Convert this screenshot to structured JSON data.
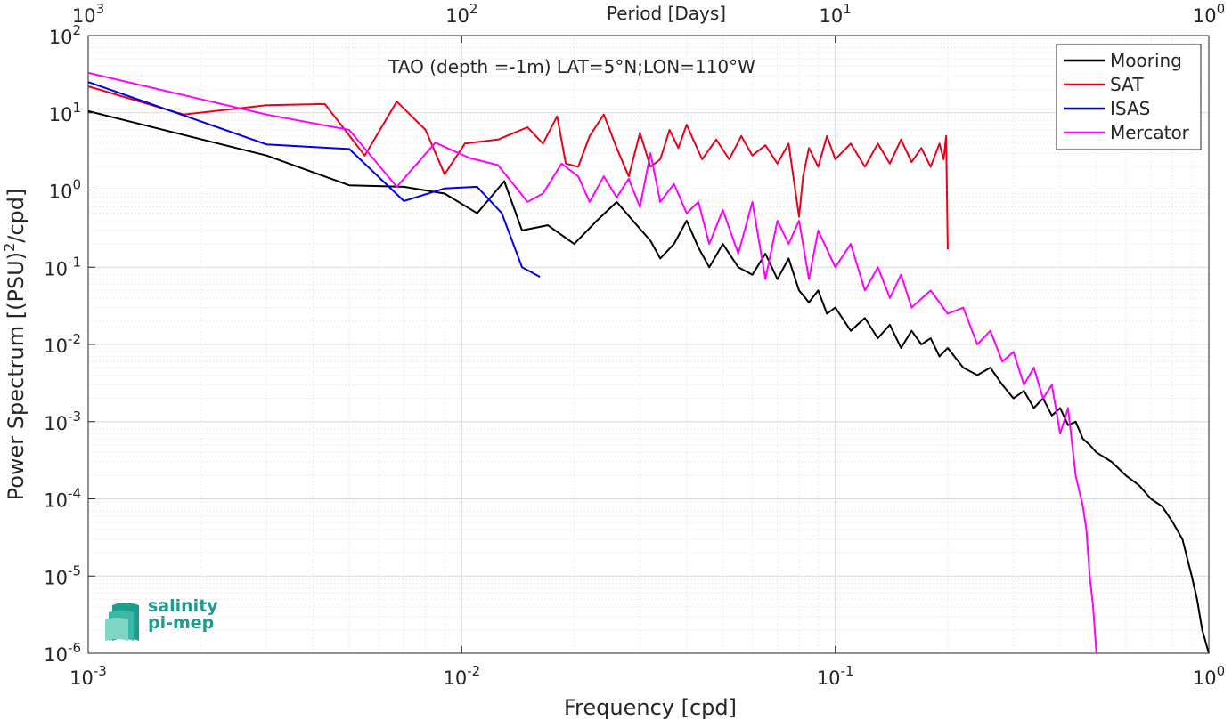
{
  "chart_data": {
    "type": "line",
    "title": "TAO (depth =-1m) LAT=5°N;LON=110°W",
    "xlabel": "Frequency [cpd]",
    "ylabel_main": "Power Spectrum [(PSU)",
    "ylabel_sup": "2",
    "ylabel_tail": "/cpd]",
    "top_xlabel": "Period [Days]",
    "xscale": "log",
    "yscale": "log",
    "xlim": [
      0.001,
      1
    ],
    "ylim": [
      1e-06,
      100
    ],
    "grid": true,
    "legend_position": "top-right",
    "x_ticks": [
      {
        "value": 0.001,
        "base": "10",
        "exp": "-3"
      },
      {
        "value": 0.01,
        "base": "10",
        "exp": "-2"
      },
      {
        "value": 0.1,
        "base": "10",
        "exp": "-1"
      },
      {
        "value": 1,
        "base": "10",
        "exp": "0"
      }
    ],
    "top_ticks": [
      {
        "value": 0.001,
        "base": "10",
        "exp": "3"
      },
      {
        "value": 0.01,
        "base": "10",
        "exp": "2"
      },
      {
        "value": 0.1,
        "base": "10",
        "exp": "1"
      },
      {
        "value": 1,
        "base": "10",
        "exp": "0"
      }
    ],
    "y_ticks": [
      {
        "value": 1e-06,
        "base": "10",
        "exp": "-6"
      },
      {
        "value": 1e-05,
        "base": "10",
        "exp": "-5"
      },
      {
        "value": 0.0001,
        "base": "10",
        "exp": "-4"
      },
      {
        "value": 0.001,
        "base": "10",
        "exp": "-3"
      },
      {
        "value": 0.01,
        "base": "10",
        "exp": "-2"
      },
      {
        "value": 0.1,
        "base": "10",
        "exp": "-1"
      },
      {
        "value": 1,
        "base": "10",
        "exp": "0"
      },
      {
        "value": 10,
        "base": "10",
        "exp": "1"
      },
      {
        "value": 100,
        "base": "10",
        "exp": "2"
      }
    ],
    "series": [
      {
        "name": "Mooring",
        "color": "#000000",
        "x": [
          0.001,
          0.003,
          0.005,
          0.007,
          0.009,
          0.011,
          0.013,
          0.0145,
          0.017,
          0.02,
          0.023,
          0.026,
          0.029,
          0.032,
          0.034,
          0.037,
          0.04,
          0.043,
          0.046,
          0.05,
          0.055,
          0.06,
          0.065,
          0.07,
          0.075,
          0.08,
          0.085,
          0.09,
          0.095,
          0.1,
          0.11,
          0.12,
          0.13,
          0.14,
          0.15,
          0.16,
          0.17,
          0.18,
          0.19,
          0.2,
          0.22,
          0.24,
          0.26,
          0.28,
          0.3,
          0.32,
          0.34,
          0.36,
          0.38,
          0.4,
          0.42,
          0.44,
          0.46,
          0.48,
          0.5,
          0.55,
          0.6,
          0.65,
          0.7,
          0.75,
          0.8,
          0.85,
          0.9,
          0.93,
          0.96,
          1.0
        ],
        "y": [
          10.5,
          2.8,
          1.15,
          1.1,
          0.9,
          0.5,
          1.3,
          0.3,
          0.35,
          0.2,
          0.4,
          0.7,
          0.38,
          0.22,
          0.13,
          0.2,
          0.4,
          0.18,
          0.1,
          0.2,
          0.1,
          0.08,
          0.15,
          0.07,
          0.13,
          0.05,
          0.035,
          0.05,
          0.025,
          0.03,
          0.015,
          0.022,
          0.012,
          0.018,
          0.009,
          0.015,
          0.01,
          0.012,
          0.007,
          0.009,
          0.005,
          0.004,
          0.005,
          0.003,
          0.002,
          0.0025,
          0.0015,
          0.002,
          0.0012,
          0.0015,
          0.0009,
          0.001,
          0.0006,
          0.0005,
          0.0004,
          0.0003,
          0.0002,
          0.00015,
          0.0001,
          8e-05,
          5e-05,
          3e-05,
          1e-05,
          5e-06,
          2e-06,
          1e-06
        ]
      },
      {
        "name": "SAT",
        "color": "#e8001c",
        "x": [
          0.001,
          0.0018,
          0.003,
          0.0043,
          0.0055,
          0.0067,
          0.008,
          0.009,
          0.0102,
          0.0125,
          0.015,
          0.0165,
          0.018,
          0.019,
          0.0205,
          0.022,
          0.024,
          0.026,
          0.028,
          0.03,
          0.032,
          0.034,
          0.036,
          0.038,
          0.04,
          0.044,
          0.048,
          0.052,
          0.056,
          0.06,
          0.065,
          0.07,
          0.075,
          0.08,
          0.082,
          0.085,
          0.09,
          0.095,
          0.1,
          0.11,
          0.12,
          0.13,
          0.14,
          0.15,
          0.16,
          0.17,
          0.18,
          0.19,
          0.195,
          0.198,
          0.2
        ],
        "y": [
          22,
          9.5,
          12.5,
          13,
          2.8,
          14,
          6,
          1.6,
          4,
          4.5,
          6.5,
          4,
          9,
          2.2,
          2,
          5,
          9.5,
          3.5,
          1.5,
          5.5,
          2,
          2.5,
          6,
          3.5,
          7,
          2.5,
          4.5,
          2.5,
          5,
          2.8,
          3.8,
          2.2,
          4,
          0.45,
          1.5,
          3.5,
          2,
          5,
          2.5,
          4,
          2,
          4,
          2.2,
          4.5,
          2.3,
          3.5,
          2,
          4,
          2.5,
          5,
          0.17
        ]
      },
      {
        "name": "ISAS",
        "color": "#0000e8",
        "x": [
          0.001,
          0.003,
          0.005,
          0.007,
          0.009,
          0.011,
          0.0128,
          0.0145,
          0.0162
        ],
        "y": [
          25,
          3.9,
          3.4,
          0.72,
          1.05,
          1.1,
          0.5,
          0.1,
          0.075
        ]
      },
      {
        "name": "Mercator",
        "color": "#ff00ff",
        "x": [
          0.001,
          0.003,
          0.005,
          0.0067,
          0.0085,
          0.0105,
          0.0125,
          0.015,
          0.0165,
          0.0185,
          0.0205,
          0.022,
          0.024,
          0.026,
          0.028,
          0.03,
          0.032,
          0.034,
          0.037,
          0.04,
          0.043,
          0.046,
          0.05,
          0.055,
          0.06,
          0.065,
          0.07,
          0.075,
          0.08,
          0.085,
          0.09,
          0.1,
          0.11,
          0.12,
          0.13,
          0.14,
          0.15,
          0.16,
          0.18,
          0.2,
          0.22,
          0.24,
          0.26,
          0.28,
          0.3,
          0.32,
          0.34,
          0.36,
          0.38,
          0.4,
          0.42,
          0.44,
          0.46,
          0.47,
          0.48,
          0.49,
          0.5
        ],
        "y": [
          33,
          9.5,
          6,
          1.1,
          4.1,
          2.6,
          2.1,
          0.7,
          0.9,
          2.2,
          1.5,
          0.7,
          1.5,
          0.8,
          1.4,
          0.6,
          3,
          0.7,
          1.2,
          0.5,
          0.7,
          0.2,
          0.55,
          0.15,
          0.7,
          0.07,
          0.4,
          0.2,
          0.4,
          0.07,
          0.3,
          0.1,
          0.2,
          0.05,
          0.1,
          0.04,
          0.08,
          0.03,
          0.05,
          0.025,
          0.03,
          0.01,
          0.015,
          0.006,
          0.008,
          0.003,
          0.005,
          0.002,
          0.003,
          0.0007,
          0.0015,
          0.0002,
          8e-05,
          4e-05,
          1e-05,
          4e-06,
          1e-06
        ]
      }
    ]
  },
  "logo": {
    "line1": "salinity",
    "line2": "pi-mep"
  }
}
